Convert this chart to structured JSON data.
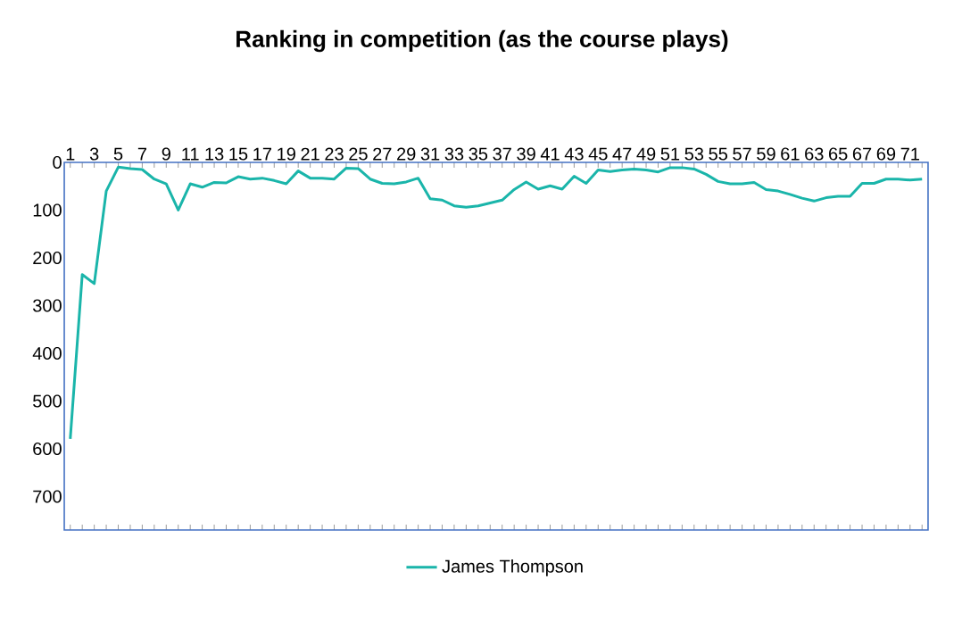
{
  "chart_data": {
    "type": "line",
    "title": "Ranking in competition (as the course plays)",
    "categories": [
      "1",
      null,
      "3",
      null,
      "5",
      null,
      "7",
      null,
      "9",
      null,
      "11",
      null,
      "13",
      null,
      "15",
      null,
      "17",
      null,
      "19",
      null,
      "21",
      null,
      "23",
      null,
      "25",
      null,
      "27",
      null,
      "29",
      null,
      "31",
      null,
      "33",
      null,
      "35",
      null,
      "37",
      null,
      "39",
      null,
      "41",
      null,
      "43",
      null,
      "45",
      null,
      "47",
      null,
      "49",
      null,
      "51",
      null,
      "53",
      null,
      "55",
      null,
      "57",
      null,
      "59",
      null,
      "61",
      null,
      "63",
      null,
      "65",
      null,
      "67",
      null,
      "69",
      null,
      "71",
      null
    ],
    "series": [
      {
        "name": "James Thompson",
        "color": "#1ab5aa",
        "values": [
          579,
          235,
          254,
          60,
          10,
          13,
          15,
          35,
          45,
          100,
          45,
          52,
          42,
          43,
          30,
          35,
          33,
          38,
          45,
          18,
          33,
          33,
          35,
          12,
          13,
          35,
          44,
          45,
          41,
          33,
          76,
          79,
          91,
          94,
          91,
          85,
          79,
          57,
          41,
          56,
          49,
          56,
          29,
          44,
          16,
          19,
          16,
          14,
          16,
          20,
          11,
          11,
          14,
          25,
          40,
          45,
          45,
          42,
          57,
          60,
          67,
          75,
          81,
          74,
          71,
          71,
          44,
          44,
          35,
          35,
          37,
          35
        ]
      }
    ],
    "ylim": [
      770,
      0
    ],
    "yticks": [
      0,
      100,
      200,
      300,
      400,
      500,
      600,
      700
    ],
    "legend": "bottom"
  }
}
